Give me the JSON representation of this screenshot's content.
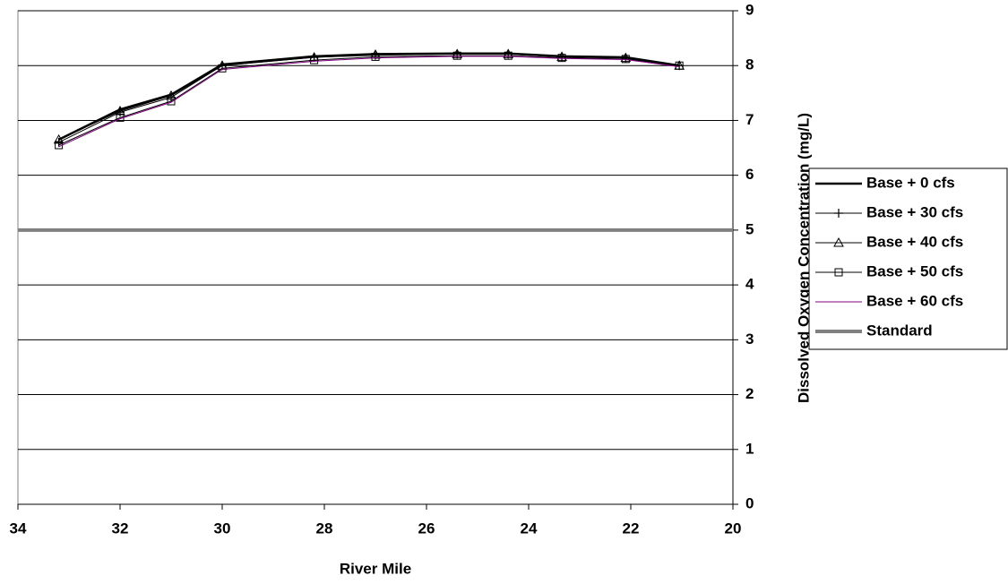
{
  "chart_data": {
    "type": "line",
    "x_label": "River Mile",
    "y_label": "Dissolved Oxygen Concentration (mg/L)",
    "x": [
      33.2,
      32,
      31,
      30,
      28.2,
      27,
      25.4,
      24.4,
      23.35,
      22.1,
      21.05
    ],
    "xlim": [
      34,
      20
    ],
    "xticks": [
      34,
      32,
      30,
      28,
      26,
      24,
      22,
      20
    ],
    "ylim": [
      0,
      9
    ],
    "yticks": [
      0,
      1,
      2,
      3,
      4,
      5,
      6,
      7,
      8,
      9
    ],
    "y_axis_side": "right",
    "grid": true,
    "legend": "right",
    "series": [
      {
        "name": "Base + 0 cfs",
        "color": "#000000",
        "line_width": 2.5,
        "marker": "none",
        "values": [
          6.65,
          7.2,
          7.47,
          8.02,
          8.17,
          8.21,
          8.22,
          8.22,
          8.17,
          8.15,
          8.0
        ]
      },
      {
        "name": "Base + 30 cfs",
        "color": "#000000",
        "line_width": 1,
        "marker": "plus",
        "values": [
          6.6,
          7.15,
          7.42,
          8.0,
          8.15,
          8.19,
          8.21,
          8.21,
          8.16,
          8.14,
          8.0
        ]
      },
      {
        "name": "Base + 40 cfs",
        "color": "#000000",
        "line_width": 1,
        "marker": "triangle",
        "values": [
          6.65,
          7.17,
          7.45,
          8.0,
          8.15,
          8.2,
          8.21,
          8.21,
          8.16,
          8.14,
          8.0
        ]
      },
      {
        "name": "Base + 50 cfs",
        "color": "#000000",
        "line_width": 1,
        "marker": "square",
        "values": [
          6.55,
          7.05,
          7.35,
          7.95,
          8.1,
          8.16,
          8.18,
          8.18,
          8.14,
          8.12,
          8.0
        ]
      },
      {
        "name": "Base + 60 cfs",
        "color": "#800080",
        "line_width": 1,
        "marker": "none",
        "values": [
          6.52,
          7.03,
          7.33,
          7.93,
          8.08,
          8.14,
          8.17,
          8.17,
          8.13,
          8.11,
          7.98
        ]
      },
      {
        "name": "Standard",
        "color": "#808080",
        "line_width": 4,
        "marker": "none",
        "x": [
          34,
          20
        ],
        "values": [
          5,
          5
        ]
      }
    ]
  }
}
